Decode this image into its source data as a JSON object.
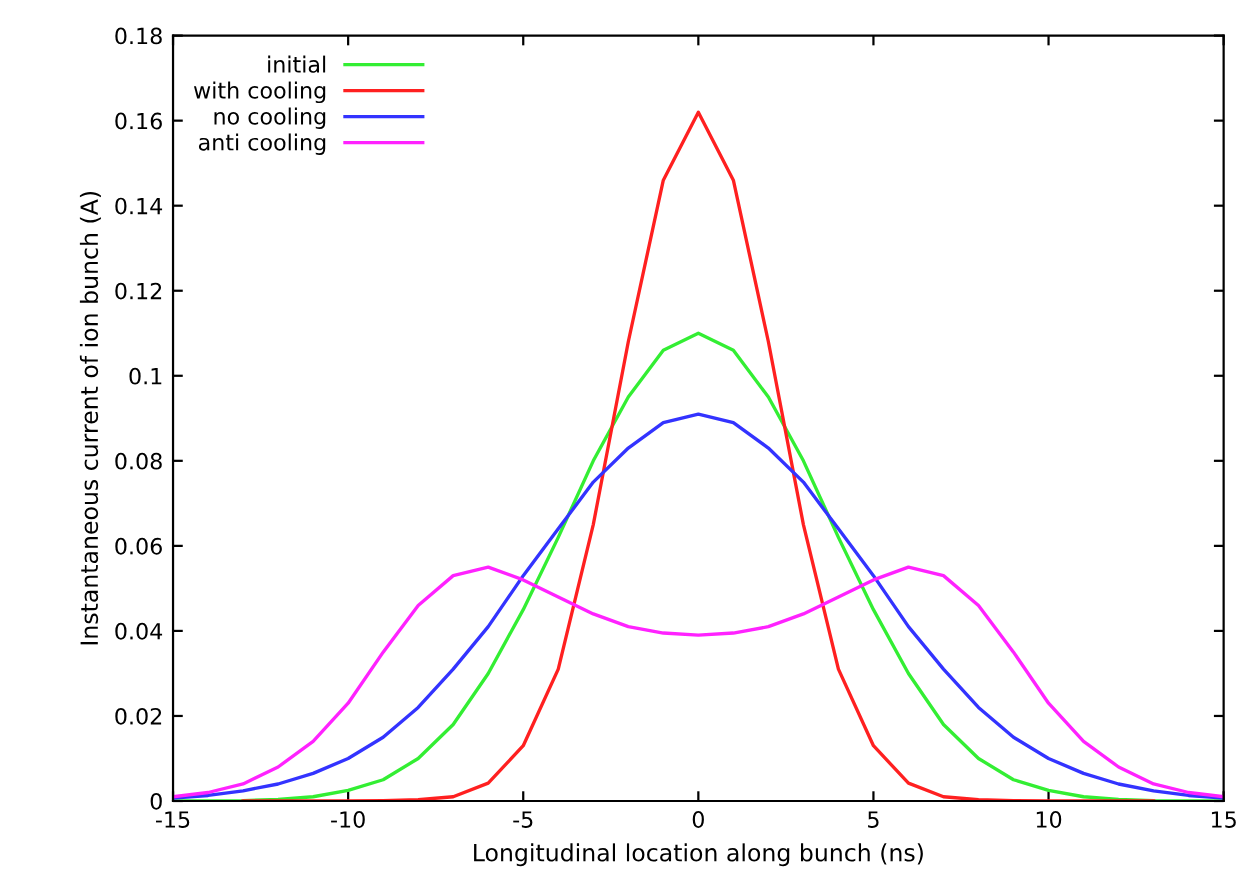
{
  "chart_data": {
    "type": "line",
    "xlabel": "Longitudinal location along bunch (ns)",
    "ylabel": "Instantaneous current of ion bunch (A)",
    "x": [
      -15,
      -14,
      -13,
      -12,
      -11,
      -10,
      -9,
      -8,
      -7,
      -6,
      -5,
      -4,
      -3,
      -2,
      -1,
      0,
      1,
      2,
      3,
      4,
      5,
      6,
      7,
      8,
      9,
      10,
      11,
      12,
      13,
      14,
      15
    ],
    "series": [
      {
        "name": "initial",
        "color": "#33ee33",
        "values": [
          0,
          0,
          0.0001,
          0.0004,
          0.001,
          0.0025,
          0.005,
          0.01,
          0.018,
          0.03,
          0.045,
          0.062,
          0.08,
          0.095,
          0.106,
          0.11,
          0.106,
          0.095,
          0.08,
          0.062,
          0.045,
          0.03,
          0.018,
          0.01,
          0.005,
          0.0025,
          0.001,
          0.0004,
          0.0001,
          0,
          0
        ]
      },
      {
        "name": "with cooling",
        "color": "#ff2020",
        "values": [
          null,
          null,
          0,
          0,
          0,
          0,
          0.0001,
          0.0003,
          0.001,
          0.0042,
          0.013,
          0.031,
          0.065,
          0.108,
          0.146,
          0.162,
          0.146,
          0.108,
          0.065,
          0.031,
          0.013,
          0.0042,
          0.001,
          0.0003,
          0.0001,
          0,
          0,
          0,
          0,
          null,
          null
        ]
      },
      {
        "name": "no cooling",
        "color": "#3333ff",
        "values": [
          0.0007,
          0.0013,
          0.0024,
          0.004,
          0.0065,
          0.01,
          0.015,
          0.022,
          0.031,
          0.041,
          0.053,
          0.064,
          0.075,
          0.083,
          0.089,
          0.091,
          0.089,
          0.083,
          0.075,
          0.064,
          0.053,
          0.041,
          0.031,
          0.022,
          0.015,
          0.01,
          0.0065,
          0.004,
          0.0024,
          0.0013,
          0.0007
        ]
      },
      {
        "name": "anti cooling",
        "color": "#ff22ff",
        "values": [
          0.001,
          0.002,
          0.004,
          0.008,
          0.014,
          0.023,
          0.035,
          0.046,
          0.053,
          0.055,
          0.052,
          0.048,
          0.044,
          0.041,
          0.0395,
          0.039,
          0.0395,
          0.041,
          0.044,
          0.048,
          0.052,
          0.055,
          0.053,
          0.046,
          0.035,
          0.023,
          0.014,
          0.008,
          0.004,
          0.002,
          0.001
        ]
      }
    ],
    "xlim": [
      -15,
      15
    ],
    "xticks": [
      -15,
      -10,
      -5,
      0,
      5,
      10,
      15
    ],
    "ylim": [
      0,
      0.18
    ],
    "yticks": [
      0,
      0.02,
      0.04,
      0.06,
      0.08,
      0.1,
      0.12,
      0.14,
      0.16,
      0.18
    ],
    "grid": false,
    "legend": "top left",
    "line_style": "solid",
    "marker": "none"
  }
}
